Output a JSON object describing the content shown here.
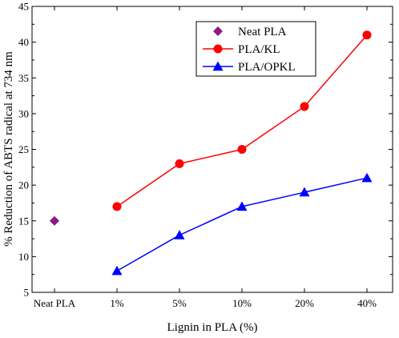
{
  "chart_data": {
    "type": "line",
    "xlabel": "Lignin in PLA (%)",
    "ylabel": "% Reduction of ABTS radical at 734 nm",
    "categories": [
      "Neat PLA",
      "1%",
      "5%",
      "10%",
      "20%",
      "40%"
    ],
    "ylim": [
      5,
      45
    ],
    "yticks": [
      5,
      10,
      15,
      20,
      25,
      30,
      35,
      40,
      45
    ],
    "grid": false,
    "legend_position": "top-right",
    "series": [
      {
        "name": "Neat PLA",
        "marker": "diamond",
        "color": "#8B1A8B",
        "line": false,
        "values": [
          15,
          null,
          null,
          null,
          null,
          null
        ]
      },
      {
        "name": "PLA/KL",
        "marker": "circle",
        "color": "#FF0000",
        "line": true,
        "values": [
          null,
          17,
          23,
          25,
          31,
          41
        ]
      },
      {
        "name": "PLA/OPKL",
        "marker": "triangle",
        "color": "#0000FF",
        "line": true,
        "values": [
          null,
          8,
          13,
          17,
          19,
          21
        ]
      }
    ]
  }
}
